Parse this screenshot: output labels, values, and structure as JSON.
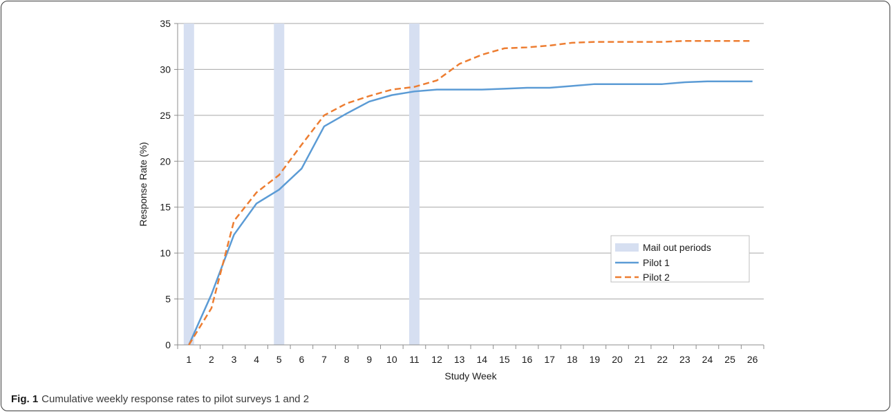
{
  "chart_data": {
    "type": "line",
    "title": "",
    "xlabel": "Study Week",
    "ylabel": "Response Rate (%)",
    "ylim": [
      0,
      35
    ],
    "yticks": [
      0,
      5,
      10,
      15,
      20,
      25,
      30,
      35
    ],
    "x": [
      1,
      2,
      3,
      4,
      5,
      6,
      7,
      8,
      9,
      10,
      11,
      12,
      13,
      14,
      15,
      16,
      17,
      18,
      19,
      20,
      21,
      22,
      23,
      24,
      25,
      26
    ],
    "mail_out_periods": {
      "name": "Mail out periods",
      "weeks": [
        1,
        5,
        11
      ],
      "color": "#d6dff1"
    },
    "series": [
      {
        "name": "Pilot 1",
        "color": "#5b9bd5",
        "dash": "solid",
        "values": [
          0,
          5.5,
          12.0,
          15.4,
          16.9,
          19.2,
          23.8,
          25.2,
          26.5,
          27.2,
          27.6,
          27.8,
          27.8,
          27.8,
          27.9,
          28.0,
          28.0,
          28.2,
          28.4,
          28.4,
          28.4,
          28.4,
          28.6,
          28.7,
          28.7,
          28.7
        ]
      },
      {
        "name": "Pilot 2",
        "color": "#ed7d31",
        "dash": "dashed",
        "values": [
          0,
          4.0,
          13.5,
          16.6,
          18.5,
          21.8,
          25.0,
          26.3,
          27.1,
          27.8,
          28.1,
          28.8,
          30.6,
          31.6,
          32.3,
          32.4,
          32.6,
          32.9,
          33.0,
          33.0,
          33.0,
          33.0,
          33.1,
          33.1,
          33.1,
          33.1
        ]
      }
    ],
    "grid": "horizontal",
    "legend_position": "right-middle"
  },
  "caption": {
    "label": "Fig. 1",
    "text": "Cumulative weekly response rates to pilot surveys 1 and 2"
  }
}
